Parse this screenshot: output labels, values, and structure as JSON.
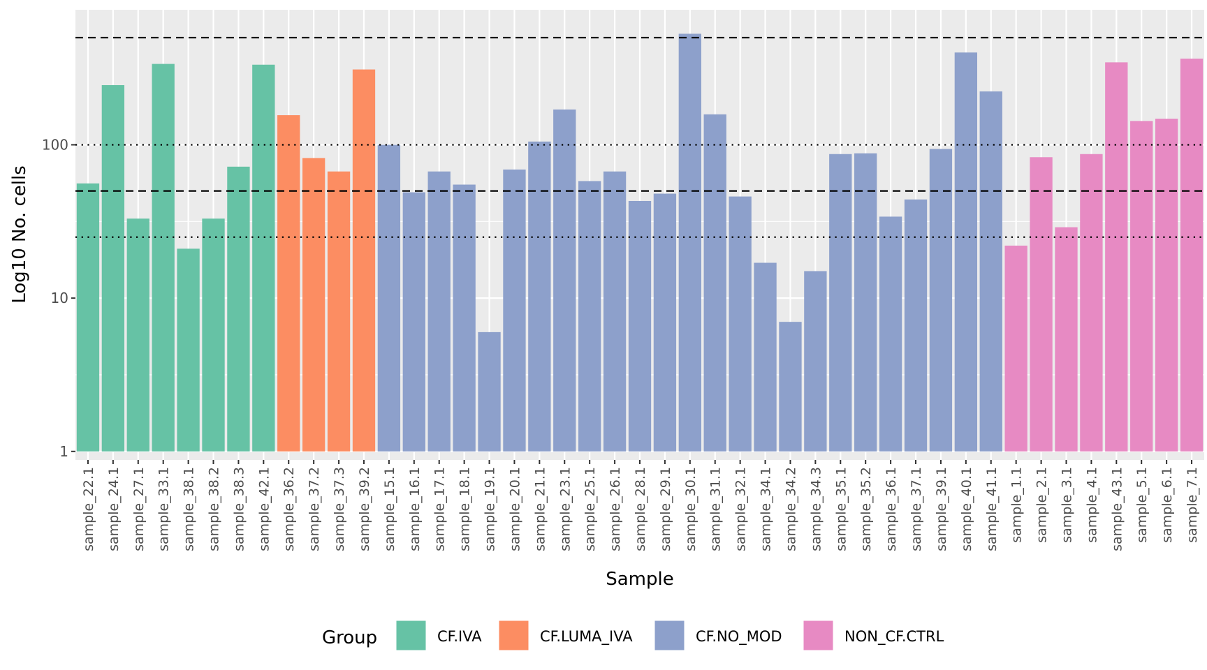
{
  "chart_data": {
    "type": "bar",
    "title": "",
    "xlabel": "Sample",
    "ylabel": "Log10 No. cells",
    "y_scale": "log10",
    "ylim": [
      0.88,
      760
    ],
    "y_ticks": [
      1,
      10,
      100
    ],
    "y_tick_labels": [
      "1",
      "10",
      "100"
    ],
    "legend_title": "Group",
    "legend_position": "bottom",
    "groups": [
      {
        "name": "CF.IVA",
        "color": "#66c2a5"
      },
      {
        "name": "CF.LUMA_IVA",
        "color": "#fc8d62"
      },
      {
        "name": "CF.NO_MOD",
        "color": "#8da0cb"
      },
      {
        "name": "NON_CF.CTRL",
        "color": "#e78ac3"
      }
    ],
    "reference_lines": [
      {
        "value": 500,
        "style": "dashed"
      },
      {
        "value": 100,
        "style": "dotted"
      },
      {
        "value": 50,
        "style": "dashed"
      },
      {
        "value": 25,
        "style": "dotted"
      }
    ],
    "categories": [
      "sample_22.1",
      "sample_24.1",
      "sample_27.1",
      "sample_33.1",
      "sample_38.1",
      "sample_38.2",
      "sample_38.3",
      "sample_42.1",
      "sample_36.2",
      "sample_37.2",
      "sample_37.3",
      "sample_39.2",
      "sample_15.1",
      "sample_16.1",
      "sample_17.1",
      "sample_18.1",
      "sample_19.1",
      "sample_20.1",
      "sample_21.1",
      "sample_23.1",
      "sample_25.1",
      "sample_26.1",
      "sample_28.1",
      "sample_29.1",
      "sample_30.1",
      "sample_31.1",
      "sample_32.1",
      "sample_34.1",
      "sample_34.2",
      "sample_34.3",
      "sample_35.1",
      "sample_35.2",
      "sample_36.1",
      "sample_37.1",
      "sample_39.1",
      "sample_40.1",
      "sample_41.1",
      "sample_1.1",
      "sample_2.1",
      "sample_3.1",
      "sample_4.1",
      "sample_43.1",
      "sample_5.1",
      "sample_6.1",
      "sample_7.1"
    ],
    "values": [
      56,
      245,
      33,
      337,
      21,
      33,
      72,
      333,
      156,
      82,
      67,
      310,
      100,
      49,
      67,
      55,
      6,
      69,
      105,
      170,
      58,
      67,
      43,
      48,
      530,
      158,
      46,
      17,
      7,
      15,
      87,
      88,
      34,
      44,
      94,
      400,
      223,
      22,
      83,
      29,
      87,
      345,
      143,
      148,
      365
    ],
    "group_of": [
      "CF.IVA",
      "CF.IVA",
      "CF.IVA",
      "CF.IVA",
      "CF.IVA",
      "CF.IVA",
      "CF.IVA",
      "CF.IVA",
      "CF.LUMA_IVA",
      "CF.LUMA_IVA",
      "CF.LUMA_IVA",
      "CF.LUMA_IVA",
      "CF.NO_MOD",
      "CF.NO_MOD",
      "CF.NO_MOD",
      "CF.NO_MOD",
      "CF.NO_MOD",
      "CF.NO_MOD",
      "CF.NO_MOD",
      "CF.NO_MOD",
      "CF.NO_MOD",
      "CF.NO_MOD",
      "CF.NO_MOD",
      "CF.NO_MOD",
      "CF.NO_MOD",
      "CF.NO_MOD",
      "CF.NO_MOD",
      "CF.NO_MOD",
      "CF.NO_MOD",
      "CF.NO_MOD",
      "CF.NO_MOD",
      "CF.NO_MOD",
      "CF.NO_MOD",
      "CF.NO_MOD",
      "CF.NO_MOD",
      "CF.NO_MOD",
      "CF.NO_MOD",
      "NON_CF.CTRL",
      "NON_CF.CTRL",
      "NON_CF.CTRL",
      "NON_CF.CTRL",
      "NON_CF.CTRL",
      "NON_CF.CTRL",
      "NON_CF.CTRL",
      "NON_CF.CTRL"
    ]
  }
}
